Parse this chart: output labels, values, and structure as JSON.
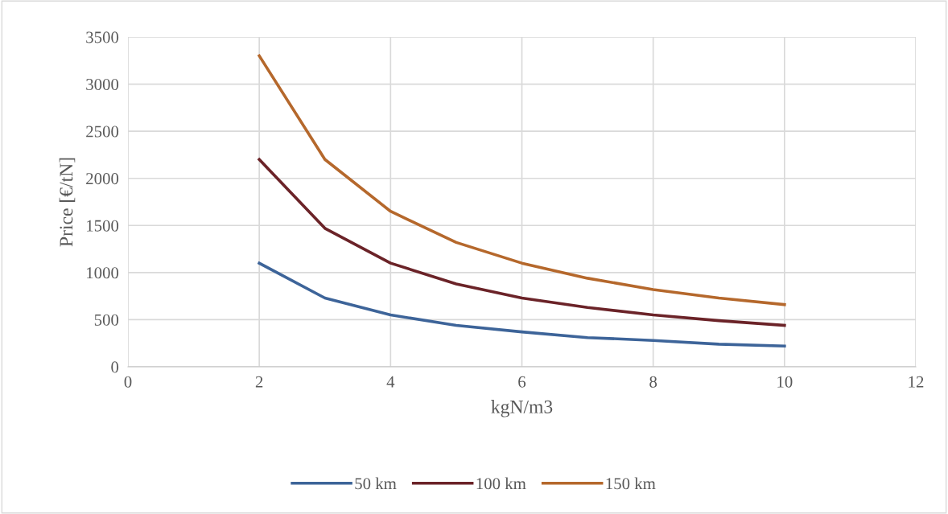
{
  "chart_data": {
    "type": "line",
    "xlabel": "kgN/m3",
    "ylabel": "Price [€/tN]",
    "x": [
      2,
      3,
      4,
      5,
      6,
      7,
      8,
      9,
      10
    ],
    "series": [
      {
        "name": "50 km",
        "color": "#3d6499",
        "values": [
          1100,
          730,
          550,
          440,
          370,
          310,
          280,
          240,
          220
        ]
      },
      {
        "name": "100 km",
        "color": "#6b2328",
        "values": [
          2200,
          1470,
          1100,
          880,
          730,
          630,
          550,
          490,
          440
        ]
      },
      {
        "name": "150 km",
        "color": "#b5682c",
        "values": [
          3300,
          2200,
          1650,
          1320,
          1100,
          940,
          820,
          730,
          660
        ]
      }
    ],
    "xlim": [
      0,
      12
    ],
    "xticks": [
      0,
      2,
      4,
      6,
      8,
      10,
      12
    ],
    "ylim": [
      0,
      3500
    ],
    "yticks": [
      0,
      500,
      1000,
      1500,
      2000,
      2500,
      3000,
      3500
    ],
    "grid": true,
    "legend": "bottom",
    "marker": "none",
    "line_style": "solid"
  }
}
